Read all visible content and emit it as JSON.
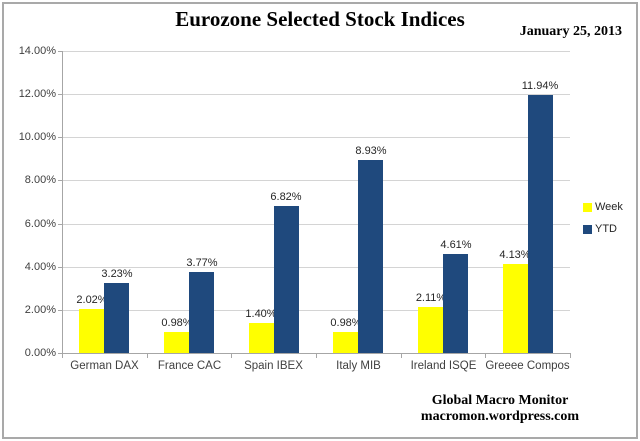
{
  "header": {
    "title": "Eurozone Selected Stock Indices",
    "date": "January 25, 2013"
  },
  "footer": {
    "line1": "Global Macro Monitor",
    "line2": "macromon.wordpress.com"
  },
  "colors": {
    "week_bar": "#FFFF00",
    "ytd_bar": "#1F497D",
    "gridline": "#D4D4D4",
    "axis": "#A6A6A6",
    "label_text": "#3F3F3F"
  },
  "chart_data": {
    "type": "bar",
    "title": "Eurozone Selected Stock Indices",
    "subtitle": "January 25, 2013",
    "categories": [
      "German DAX",
      "France CAC",
      "Spain IBEX",
      "Italy MIB",
      "Ireland ISQE",
      "Greeee Compos"
    ],
    "series": [
      {
        "name": "Week",
        "color": "#FFFF00",
        "values": [
          2.02,
          0.98,
          1.4,
          0.98,
          2.11,
          4.13
        ],
        "labels": [
          "2.02%",
          "0.98%",
          "1.40%",
          "0.98%",
          "2.11%",
          "4.13%"
        ]
      },
      {
        "name": "YTD",
        "color": "#1F497D",
        "values": [
          3.23,
          3.77,
          6.82,
          8.93,
          4.61,
          11.94
        ],
        "labels": [
          "3.23%",
          "3.77%",
          "6.82%",
          "8.93%",
          "4.61%",
          "11.94%"
        ]
      }
    ],
    "xlabel": "",
    "ylabel": "",
    "ylim": [
      0,
      14
    ],
    "ytick_values": [
      0,
      2,
      4,
      6,
      8,
      10,
      12,
      14
    ],
    "ytick_labels": [
      "0.00%",
      "2.00%",
      "4.00%",
      "6.00%",
      "8.00%",
      "10.00%",
      "12.00%",
      "14.00%"
    ],
    "grid": true,
    "legend_position": "right",
    "bar_label_position": "outside-end"
  }
}
